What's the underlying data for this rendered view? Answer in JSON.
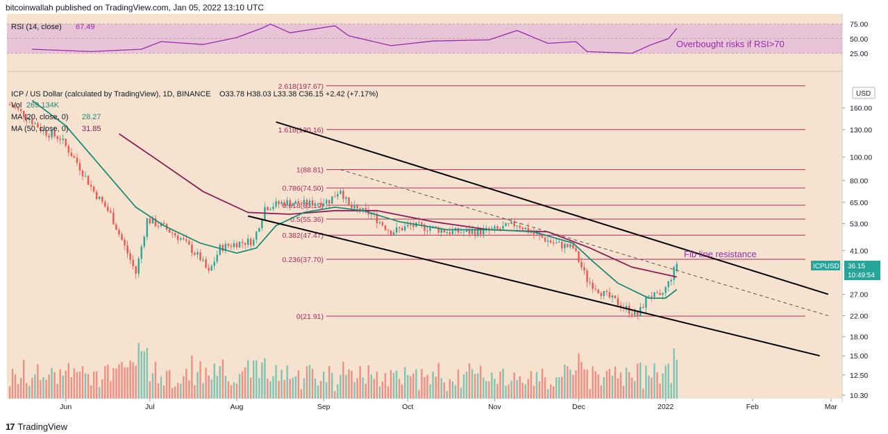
{
  "header": {
    "published": "bitcoinwallah published on TradingView.com, Jan 05, 2022 13:10 UTC"
  },
  "footer": {
    "brand": "TradingView",
    "logo_glyph": "17"
  },
  "colors": {
    "background": "#f5e3cf",
    "rsi_band": "#e7c4d6",
    "rsi_line": "#9c27b0",
    "ma20": "#1c8a78",
    "ma50": "#8d1b5a",
    "fib": "#b0275a",
    "up": "#26a69a",
    "down": "#ef5350",
    "vol_up": "#7fc4b5",
    "vol_down": "#f08e86",
    "annotation": "#9c27b0",
    "price_tag": "#26a69a"
  },
  "rsi": {
    "title": "RSI (14, close)",
    "value": "67.49",
    "annotation": "Overbought risks if RSI>70",
    "ticks": [
      "75.00",
      "50.00",
      "25.00"
    ]
  },
  "legend": {
    "pair": "ICP / US Dollar (calculated by TradingView), 1D, BINANCE",
    "ohlc": "O33.78  H38.03  L33.38  C36.15  +2.42 (+7.17%)",
    "vol_label": "Vol",
    "vol_value": "269.134K",
    "ma20_label": "MA (20, close, 0)",
    "ma20_value": "28.27",
    "ma50_label": "MA (50, close, 0)",
    "ma50_value": "31.85"
  },
  "axis": {
    "currency": "USD",
    "price_ticks": [
      "160.00",
      "130.00",
      "100.00",
      "80.00",
      "65.00",
      "53.00",
      "41.00",
      "27.00",
      "22.00",
      "18.00",
      "15.00",
      "12.50",
      "10.30"
    ],
    "months": [
      "Jun",
      "Jul",
      "Aug",
      "Sep",
      "Oct",
      "Nov",
      "Dec",
      "2022",
      "Feb",
      "Mar"
    ]
  },
  "price_tag": {
    "symbol": "ICPUSD",
    "price": "36.15",
    "countdown": "10:49:54"
  },
  "annotations": {
    "fib_resistance": "Fib line resistance"
  },
  "chart_data": {
    "type": "candlestick",
    "title": "ICP / US Dollar (calculated by TradingView), 1D, BINANCE",
    "y_scale": "log",
    "ylim": [
      10.3,
      200
    ],
    "x_range": [
      "2021-05-11",
      "2022-03-05"
    ],
    "last_candle": {
      "date": "2022-01-05",
      "open": 33.78,
      "high": 38.03,
      "low": 33.38,
      "close": 36.15,
      "change": 2.42,
      "change_pct": 7.17
    },
    "fib_levels": [
      {
        "label": "2.618(197.67)",
        "value": 197.67
      },
      {
        "label": "1.618(130.16)",
        "value": 130.16
      },
      {
        "label": "1(88.81)",
        "value": 88.81
      },
      {
        "label": "0.786(74.50)",
        "value": 74.5
      },
      {
        "label": "0.618(63.19)",
        "value": 63.19
      },
      {
        "label": "0.5(55.36)",
        "value": 55.36
      },
      {
        "label": "0.382(47.47)",
        "value": 47.47
      },
      {
        "label": "0.236(37.70)",
        "value": 37.7
      },
      {
        "label": "0(21.91)",
        "value": 21.91
      }
    ],
    "closes": [
      {
        "date": "2021-05-12",
        "close": 165
      },
      {
        "date": "2021-05-18",
        "close": 148
      },
      {
        "date": "2021-05-24",
        "close": 128
      },
      {
        "date": "2021-05-30",
        "close": 120
      },
      {
        "date": "2021-06-05",
        "close": 95
      },
      {
        "date": "2021-06-11",
        "close": 72
      },
      {
        "date": "2021-06-17",
        "close": 58
      },
      {
        "date": "2021-06-23",
        "close": 40
      },
      {
        "date": "2021-06-26",
        "close": 33
      },
      {
        "date": "2021-06-30",
        "close": 55
      },
      {
        "date": "2021-07-05",
        "close": 52
      },
      {
        "date": "2021-07-12",
        "close": 46
      },
      {
        "date": "2021-07-19",
        "close": 38
      },
      {
        "date": "2021-07-22",
        "close": 33
      },
      {
        "date": "2021-07-26",
        "close": 42
      },
      {
        "date": "2021-08-01",
        "close": 44
      },
      {
        "date": "2021-08-07",
        "close": 45
      },
      {
        "date": "2021-08-11",
        "close": 62
      },
      {
        "date": "2021-08-18",
        "close": 65
      },
      {
        "date": "2021-08-26",
        "close": 64
      },
      {
        "date": "2021-09-03",
        "close": 66
      },
      {
        "date": "2021-09-07",
        "close": 74
      },
      {
        "date": "2021-09-10",
        "close": 62
      },
      {
        "date": "2021-09-18",
        "close": 58
      },
      {
        "date": "2021-09-25",
        "close": 49
      },
      {
        "date": "2021-10-02",
        "close": 52
      },
      {
        "date": "2021-10-09",
        "close": 51
      },
      {
        "date": "2021-10-16",
        "close": 49
      },
      {
        "date": "2021-10-25",
        "close": 49
      },
      {
        "date": "2021-11-02",
        "close": 50
      },
      {
        "date": "2021-11-09",
        "close": 53
      },
      {
        "date": "2021-11-15",
        "close": 48
      },
      {
        "date": "2021-11-22",
        "close": 44
      },
      {
        "date": "2021-11-29",
        "close": 42
      },
      {
        "date": "2021-12-04",
        "close": 31
      },
      {
        "date": "2021-12-10",
        "close": 27
      },
      {
        "date": "2021-12-17",
        "close": 24
      },
      {
        "date": "2021-12-22",
        "close": 22
      },
      {
        "date": "2021-12-26",
        "close": 27
      },
      {
        "date": "2021-12-30",
        "close": 26
      },
      {
        "date": "2022-01-02",
        "close": 30
      },
      {
        "date": "2022-01-05",
        "close": 36.15
      }
    ],
    "ma20": [
      {
        "date": "2021-05-20",
        "value": 172
      },
      {
        "date": "2021-06-01",
        "value": 135
      },
      {
        "date": "2021-06-14",
        "value": 90
      },
      {
        "date": "2021-06-26",
        "value": 62
      },
      {
        "date": "2021-07-06",
        "value": 52
      },
      {
        "date": "2021-07-19",
        "value": 44
      },
      {
        "date": "2021-08-01",
        "value": 40
      },
      {
        "date": "2021-08-08",
        "value": 42
      },
      {
        "date": "2021-08-15",
        "value": 52
      },
      {
        "date": "2021-08-25",
        "value": 59
      },
      {
        "date": "2021-09-05",
        "value": 62
      },
      {
        "date": "2021-09-15",
        "value": 60
      },
      {
        "date": "2021-09-28",
        "value": 54
      },
      {
        "date": "2021-10-15",
        "value": 50
      },
      {
        "date": "2021-11-01",
        "value": 50
      },
      {
        "date": "2021-11-15",
        "value": 49
      },
      {
        "date": "2021-11-29",
        "value": 44
      },
      {
        "date": "2021-12-06",
        "value": 37
      },
      {
        "date": "2021-12-15",
        "value": 30
      },
      {
        "date": "2021-12-26",
        "value": 26
      },
      {
        "date": "2022-01-01",
        "value": 26
      },
      {
        "date": "2022-01-05",
        "value": 28.27
      }
    ],
    "ma50": [
      {
        "date": "2021-06-20",
        "value": 125
      },
      {
        "date": "2021-07-05",
        "value": 95
      },
      {
        "date": "2021-07-20",
        "value": 72
      },
      {
        "date": "2021-08-05",
        "value": 59
      },
      {
        "date": "2021-08-20",
        "value": 58
      },
      {
        "date": "2021-09-05",
        "value": 60
      },
      {
        "date": "2021-09-20",
        "value": 60
      },
      {
        "date": "2021-10-10",
        "value": 54
      },
      {
        "date": "2021-10-30",
        "value": 50
      },
      {
        "date": "2021-11-20",
        "value": 49
      },
      {
        "date": "2021-12-05",
        "value": 42
      },
      {
        "date": "2021-12-20",
        "value": 35
      },
      {
        "date": "2022-01-05",
        "value": 31.85
      }
    ],
    "rsi_series": [
      {
        "date": "2021-05-20",
        "value": 32
      },
      {
        "date": "2021-06-10",
        "value": 28
      },
      {
        "date": "2021-06-28",
        "value": 32
      },
      {
        "date": "2021-07-05",
        "value": 45
      },
      {
        "date": "2021-07-20",
        "value": 40
      },
      {
        "date": "2021-08-01",
        "value": 52
      },
      {
        "date": "2021-08-10",
        "value": 68
      },
      {
        "date": "2021-08-13",
        "value": 75
      },
      {
        "date": "2021-08-20",
        "value": 60
      },
      {
        "date": "2021-09-05",
        "value": 72
      },
      {
        "date": "2021-09-10",
        "value": 55
      },
      {
        "date": "2021-09-25",
        "value": 38
      },
      {
        "date": "2021-10-10",
        "value": 46
      },
      {
        "date": "2021-10-30",
        "value": 48
      },
      {
        "date": "2021-11-09",
        "value": 64
      },
      {
        "date": "2021-11-20",
        "value": 42
      },
      {
        "date": "2021-11-30",
        "value": 45
      },
      {
        "date": "2021-12-04",
        "value": 28
      },
      {
        "date": "2021-12-20",
        "value": 25
      },
      {
        "date": "2021-12-27",
        "value": 40
      },
      {
        "date": "2022-01-02",
        "value": 50
      },
      {
        "date": "2022-01-05",
        "value": 67.49
      }
    ],
    "channel_upper": [
      {
        "date": "2021-08-15",
        "value": 140
      },
      {
        "date": "2022-02-28",
        "value": 27
      }
    ],
    "channel_lower": [
      {
        "date": "2021-08-05",
        "value": 57
      },
      {
        "date": "2022-02-25",
        "value": 15
      }
    ],
    "trend_dashed": [
      {
        "date": "2021-09-07",
        "value": 88.81
      },
      {
        "date": "2022-02-28",
        "value": 22
      }
    ]
  }
}
